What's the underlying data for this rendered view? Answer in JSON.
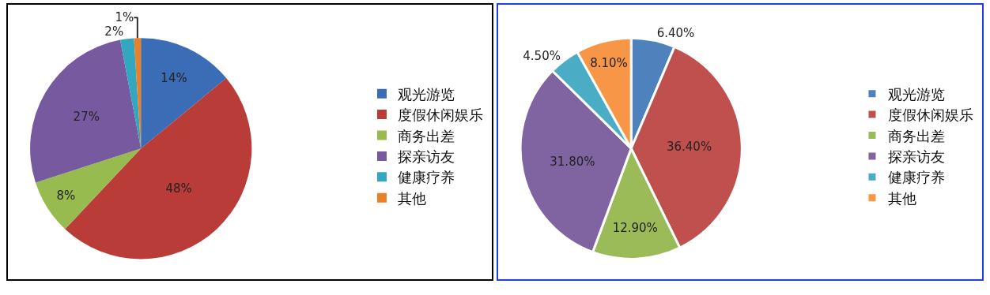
{
  "chart_data": [
    {
      "type": "pie",
      "categories": [
        "观光游览",
        "度假休闲娱乐",
        "商务出差",
        "探亲访友",
        "健康疗养",
        "其他"
      ],
      "values": [
        14,
        48,
        8,
        27,
        2,
        1
      ],
      "value_labels": [
        "14%",
        "48%",
        "8%",
        "27%",
        "2%",
        "1%"
      ],
      "colors": [
        "#3a6db5",
        "#b93c38",
        "#98bb4f",
        "#77599f",
        "#33a6c0",
        "#e8822a"
      ],
      "legend": "right"
    },
    {
      "type": "pie",
      "categories": [
        "观光游览",
        "度假休闲娱乐",
        "商务出差",
        "探亲访友",
        "健康疗养",
        "其他"
      ],
      "values": [
        6.4,
        36.4,
        12.9,
        31.8,
        4.5,
        8.1
      ],
      "value_labels": [
        "6.40%",
        "36.40%",
        "12.90%",
        "31.80%",
        "4.50%",
        "8.10%"
      ],
      "colors": [
        "#4f81bd",
        "#c0504d",
        "#9bbb59",
        "#8064a2",
        "#4bacc6",
        "#f79646"
      ],
      "legend": "right"
    }
  ]
}
